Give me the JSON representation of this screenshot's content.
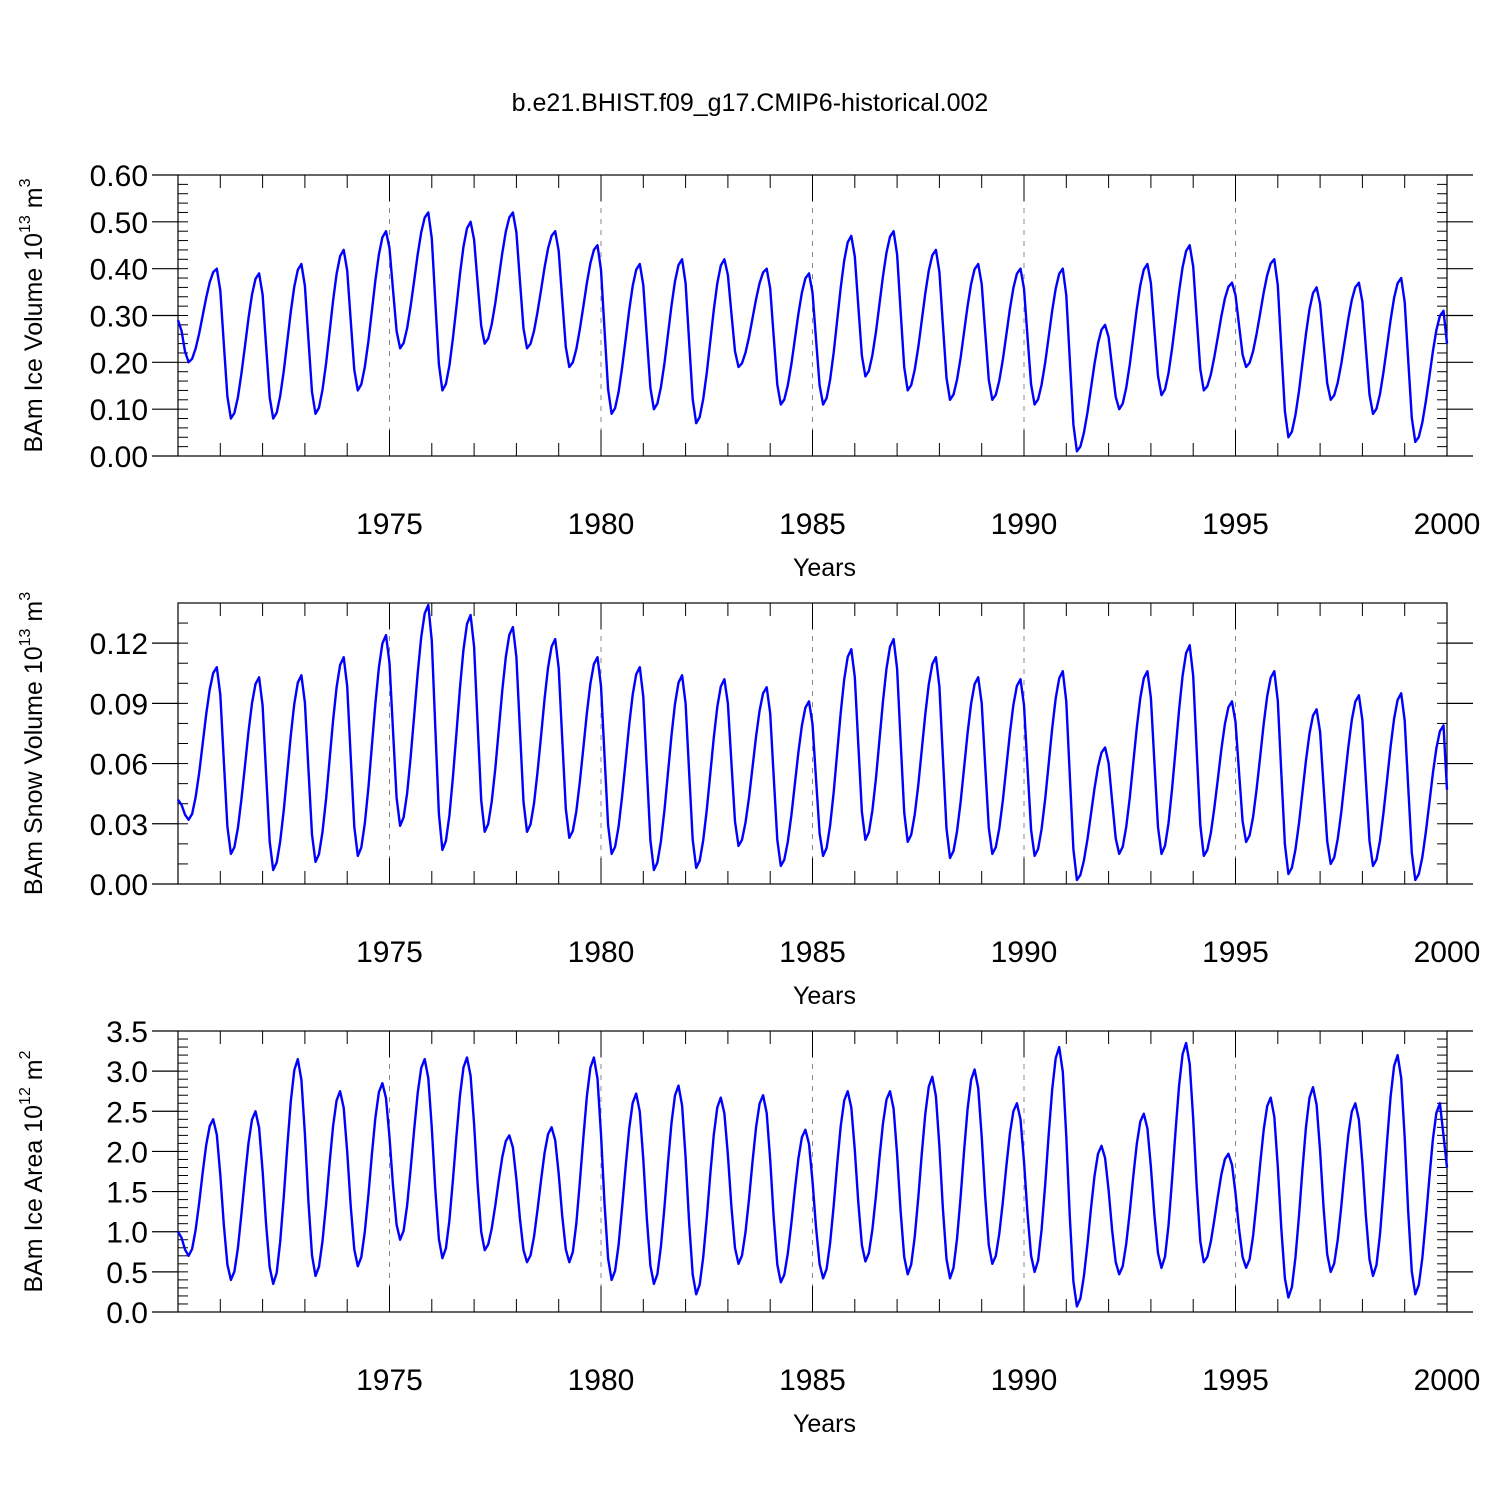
{
  "title": "b.e21.BHIST.f09_g17.CMIP6-historical.002",
  "chart_data": [
    {
      "type": "line",
      "ylabel_prefix": "BAm Ice Volume 10",
      "ylabel_exp": "13",
      "ylabel_unit": " m",
      "ylabel_unit_exp": "3",
      "xlabel": "Years",
      "xlim": [
        1970.0,
        2000.0
      ],
      "ylim": [
        0.0,
        0.6
      ],
      "yticks": [
        0.0,
        0.1,
        0.2,
        0.3,
        0.4,
        0.5,
        0.6
      ],
      "ytick_labels": [
        "0.00",
        "0.10",
        "0.20",
        "0.30",
        "0.40",
        "0.50",
        "0.60"
      ],
      "minor_ytick_step": 0.02,
      "xticks": [
        1975,
        1980,
        1985,
        1990,
        1995,
        2000
      ],
      "xtick_labels": [
        "1975",
        "1980",
        "1985",
        "1990",
        "1995",
        "2000"
      ],
      "minor_xtick_step": 1,
      "grid": "dashed vertical lines at major x ticks",
      "color": "#0000ff",
      "annual_min_month": 3,
      "annual_max_month": 11,
      "start_value": 0.29,
      "end_value": 0.24,
      "annual_minima": [
        0.2,
        0.08,
        0.08,
        0.09,
        0.14,
        0.23,
        0.14,
        0.24,
        0.23,
        0.19,
        0.09,
        0.1,
        0.07,
        0.19,
        0.11,
        0.11,
        0.17,
        0.14,
        0.12,
        0.12,
        0.11,
        0.01,
        0.1,
        0.13,
        0.14,
        0.19,
        0.04,
        0.12,
        0.09,
        0.03
      ],
      "annual_maxima": [
        0.4,
        0.39,
        0.41,
        0.44,
        0.48,
        0.52,
        0.5,
        0.52,
        0.48,
        0.45,
        0.41,
        0.42,
        0.42,
        0.4,
        0.39,
        0.47,
        0.48,
        0.44,
        0.41,
        0.4,
        0.4,
        0.28,
        0.41,
        0.45,
        0.37,
        0.42,
        0.36,
        0.37,
        0.38,
        0.31
      ]
    },
    {
      "type": "line",
      "ylabel_prefix": "BAm Snow Volume 10",
      "ylabel_exp": "13",
      "ylabel_unit": " m",
      "ylabel_unit_exp": "3",
      "xlabel": "Years",
      "xlim": [
        1970.0,
        2000.0
      ],
      "ylim": [
        0.0,
        0.14
      ],
      "yticks": [
        0.0,
        0.03,
        0.06,
        0.09,
        0.12
      ],
      "ytick_labels": [
        "0.00",
        "0.03",
        "0.06",
        "0.09",
        "0.12"
      ],
      "minor_ytick_step": 0.01,
      "xticks": [
        1975,
        1980,
        1985,
        1990,
        1995,
        2000
      ],
      "xtick_labels": [
        "1975",
        "1980",
        "1985",
        "1990",
        "1995",
        "2000"
      ],
      "minor_xtick_step": 1,
      "grid": "dashed vertical lines at major x ticks",
      "color": "#0000ff",
      "annual_min_month": 3,
      "annual_max_month": 11,
      "start_value": 0.042,
      "end_value": 0.047,
      "annual_minima": [
        0.032,
        0.015,
        0.007,
        0.011,
        0.014,
        0.029,
        0.017,
        0.026,
        0.026,
        0.023,
        0.015,
        0.007,
        0.008,
        0.019,
        0.009,
        0.014,
        0.022,
        0.021,
        0.013,
        0.015,
        0.014,
        0.002,
        0.015,
        0.015,
        0.014,
        0.021,
        0.005,
        0.01,
        0.009,
        0.002
      ],
      "annual_maxima": [
        0.108,
        0.103,
        0.104,
        0.113,
        0.124,
        0.139,
        0.134,
        0.128,
        0.122,
        0.113,
        0.108,
        0.104,
        0.102,
        0.098,
        0.091,
        0.117,
        0.122,
        0.113,
        0.103,
        0.102,
        0.106,
        0.068,
        0.106,
        0.119,
        0.091,
        0.106,
        0.087,
        0.094,
        0.095,
        0.079
      ]
    },
    {
      "type": "line",
      "ylabel_prefix": "BAm Ice Area 10",
      "ylabel_exp": "12",
      "ylabel_unit": " m",
      "ylabel_unit_exp": "2",
      "xlabel": "Years",
      "xlim": [
        1970.0,
        2000.0
      ],
      "ylim": [
        0.0,
        3.5
      ],
      "yticks": [
        0.0,
        0.5,
        1.0,
        1.5,
        2.0,
        2.5,
        3.0,
        3.5
      ],
      "ytick_labels": [
        "0.0",
        "0.5",
        "1.0",
        "1.5",
        "2.0",
        "2.5",
        "3.0",
        "3.5"
      ],
      "minor_ytick_step": 0.1,
      "xticks": [
        1975,
        1980,
        1985,
        1990,
        1995,
        2000
      ],
      "xtick_labels": [
        "1975",
        "1980",
        "1985",
        "1990",
        "1995",
        "2000"
      ],
      "minor_xtick_step": 1,
      "grid": "dashed vertical lines at major x ticks",
      "color": "#0000ff",
      "annual_min_month": 3,
      "annual_max_month": 10,
      "start_value": 1.0,
      "end_value": 1.8,
      "annual_minima": [
        0.7,
        0.4,
        0.35,
        0.45,
        0.57,
        0.9,
        0.67,
        0.77,
        0.62,
        0.62,
        0.4,
        0.35,
        0.22,
        0.6,
        0.37,
        0.42,
        0.63,
        0.47,
        0.42,
        0.6,
        0.5,
        0.07,
        0.47,
        0.55,
        0.62,
        0.55,
        0.18,
        0.5,
        0.45,
        0.22
      ],
      "annual_maxima": [
        2.4,
        2.5,
        3.15,
        2.75,
        2.85,
        3.15,
        3.17,
        2.2,
        2.3,
        3.17,
        2.72,
        2.82,
        2.67,
        2.7,
        2.27,
        2.75,
        2.75,
        2.93,
        3.02,
        2.6,
        3.3,
        2.07,
        2.47,
        3.35,
        1.97,
        2.67,
        2.8,
        2.6,
        3.2,
        2.6
      ]
    }
  ]
}
